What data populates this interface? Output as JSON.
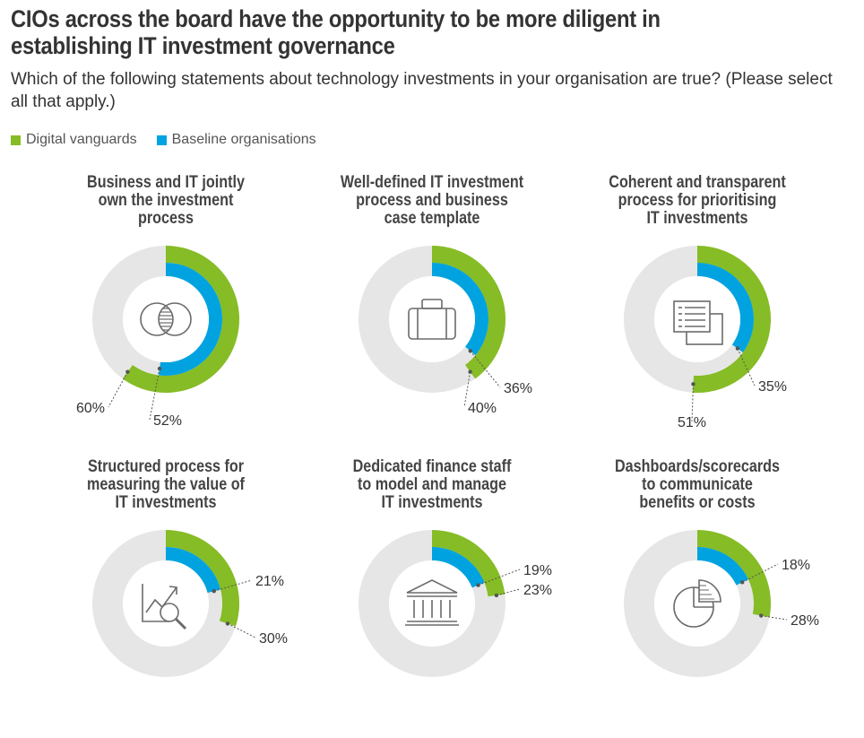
{
  "title": "CIOs across the board have the opportunity to be more diligent in establishing IT investment governance",
  "subtitle": "Which of the following statements about technology investments in your organisation are true? (Please select all that apply.)",
  "colors": {
    "vanguard": "#86bc25",
    "baseline": "#00a3e0",
    "track": "#e6e6e6",
    "icon": "#6b6b6b"
  },
  "chart_data": {
    "type": "donut",
    "series": [
      {
        "name": "Digital vanguards"
      },
      {
        "name": "Baseline organisations"
      }
    ],
    "charts": [
      {
        "title": [
          "Business and IT jointly",
          "own the investment",
          "process"
        ],
        "icon": "venn-diagram-icon",
        "vanguard": 60,
        "baseline": 52,
        "vanguard_label": "60%",
        "baseline_label": "52%"
      },
      {
        "title": [
          "Well-defined IT investment",
          "process and business",
          "case template"
        ],
        "icon": "briefcase-icon",
        "vanguard": 40,
        "baseline": 36,
        "vanguard_label": "40%",
        "baseline_label": "36%"
      },
      {
        "title": [
          "Coherent and transparent",
          "process for prioritising",
          "IT investments"
        ],
        "icon": "documents-icon",
        "vanguard": 51,
        "baseline": 35,
        "vanguard_label": "51%",
        "baseline_label": "35%"
      },
      {
        "title": [
          "Structured process for",
          "measuring the value of",
          "IT investments"
        ],
        "icon": "chart-magnifier-icon",
        "vanguard": 30,
        "baseline": 21,
        "vanguard_label": "30%",
        "baseline_label": "21%"
      },
      {
        "title": [
          "Dedicated finance staff",
          "to model and manage",
          "IT investments"
        ],
        "icon": "bank-icon",
        "vanguard": 23,
        "baseline": 19,
        "vanguard_label": "23%",
        "baseline_label": "19%"
      },
      {
        "title": [
          "Dashboards/scorecards",
          "to communicate",
          "benefits or costs"
        ],
        "icon": "pie-chart-icon",
        "vanguard": 28,
        "baseline": 18,
        "vanguard_label": "28%",
        "baseline_label": "18%"
      }
    ]
  }
}
